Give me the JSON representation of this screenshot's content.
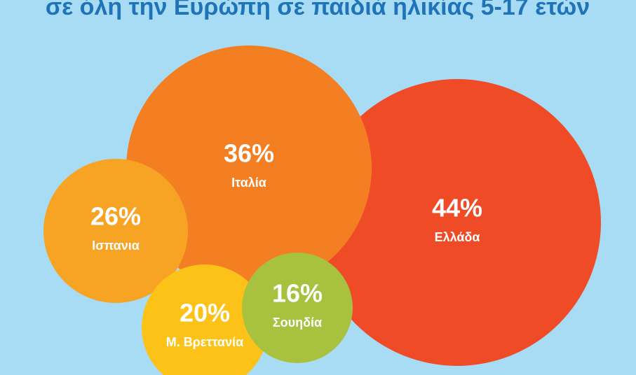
{
  "chart_data": {
    "type": "bubble",
    "title": "σε όλη την Ευρώπη σε παιδιά ηλικίας 5-17 ετών",
    "categories": [
      "Ελλάδα",
      "Ιταλία",
      "Ισπανια",
      "Μ. Βρεττανία",
      "Σουηδία"
    ],
    "values": [
      44,
      36,
      26,
      20,
      16
    ],
    "value_labels": [
      "44%",
      "36%",
      "26%",
      "20%",
      "16%"
    ],
    "colors": [
      "#ef4b26",
      "#f47f23",
      "#f7a424",
      "#fdc217",
      "#a8c13e"
    ]
  }
}
